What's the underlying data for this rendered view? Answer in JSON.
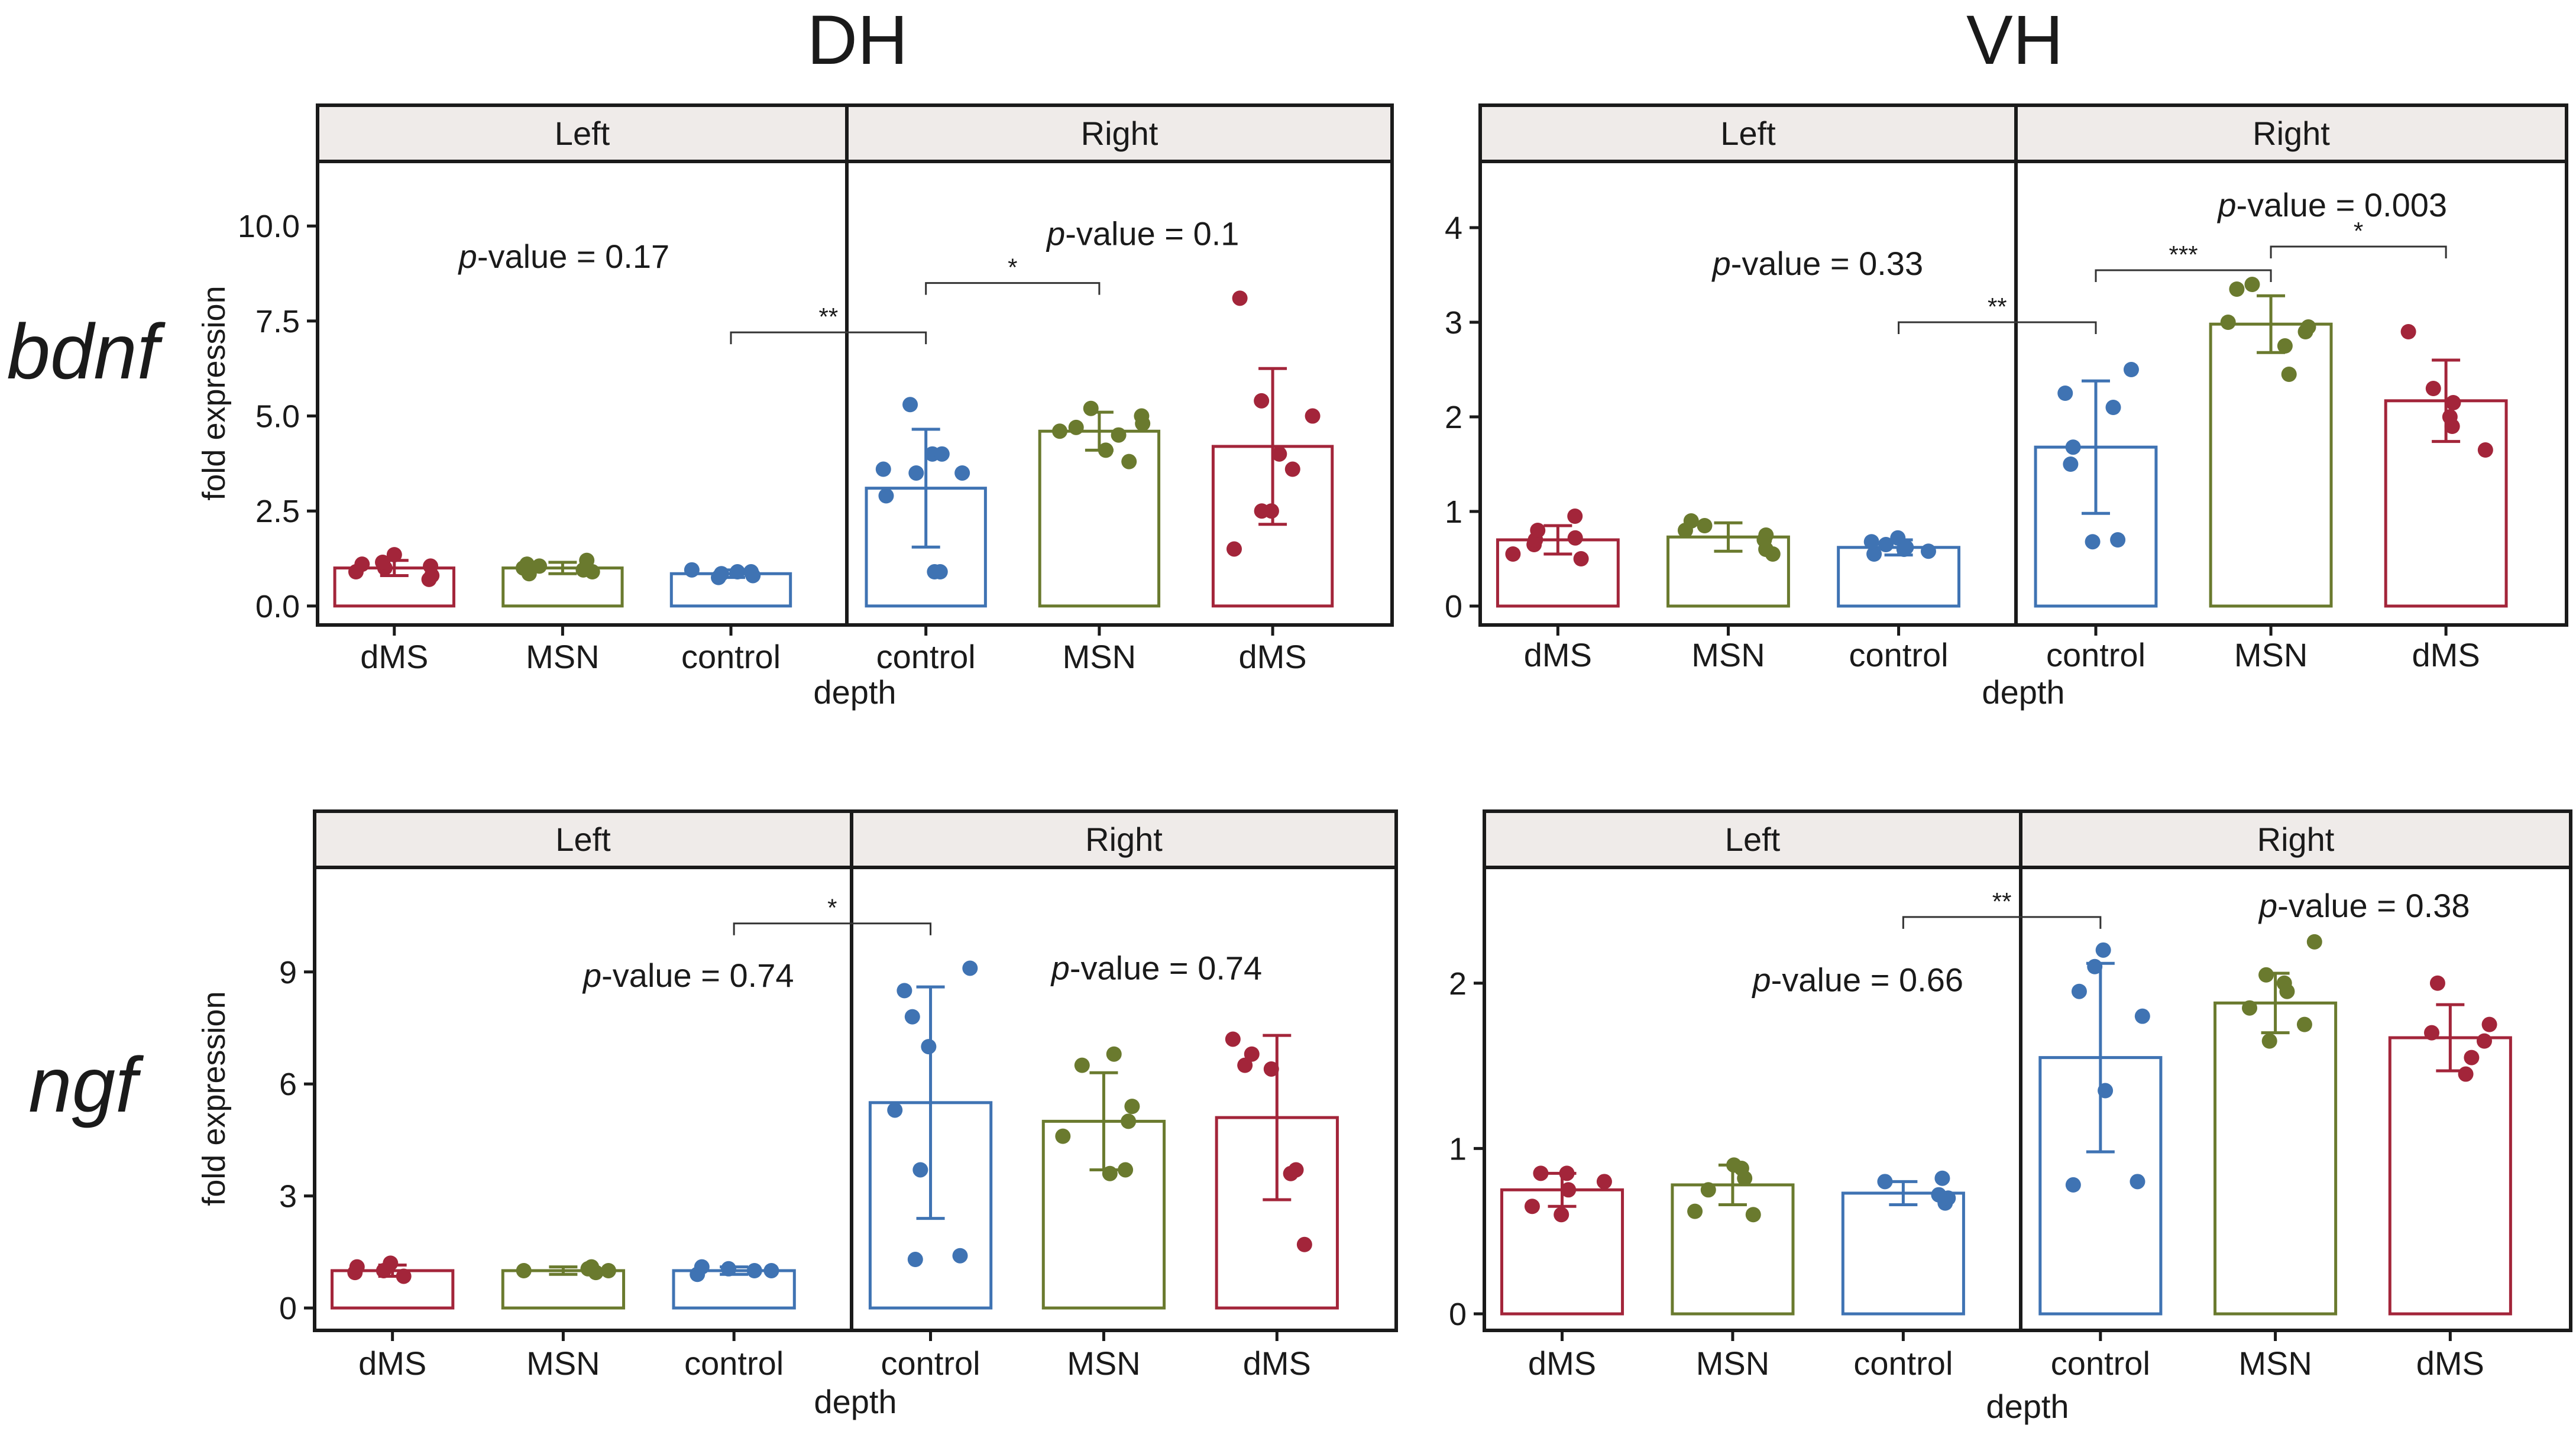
{
  "column_titles": [
    "DH",
    "VH"
  ],
  "row_labels": [
    "bdnf",
    "ngf"
  ],
  "colors": {
    "dMS": "#a3253a",
    "MSN": "#6a7a2e",
    "control": "#3f73b3",
    "strip_fill": "#efebe9",
    "frame": "#1a1a1a"
  },
  "chart_data": [
    {
      "id": "bdnf-DH",
      "type": "bar",
      "row": 0,
      "col": 0,
      "ylabel": "fold expression",
      "xlabel": "depth",
      "ylim": [
        -0.5,
        11.7
      ],
      "yticks": [
        0.0,
        2.5,
        5.0,
        7.5,
        10.0
      ],
      "ytick_labels": [
        "0.0",
        "2.5",
        "5.0",
        "7.5",
        "10.0"
      ],
      "facets": [
        "Left",
        "Right"
      ],
      "categories": [
        "dMS",
        "MSN",
        "control",
        "control",
        "MSN",
        "dMS"
      ],
      "bars": [
        {
          "facet": "Left",
          "group": "dMS",
          "mean": 1.0,
          "sd": 0.2,
          "points": [
            0.7,
            0.8,
            0.9,
            1.0,
            1.05,
            1.1,
            1.15,
            1.35
          ]
        },
        {
          "facet": "Left",
          "group": "MSN",
          "mean": 1.0,
          "sd": 0.15,
          "points": [
            0.85,
            0.9,
            0.95,
            1.0,
            1.05,
            1.1,
            1.2
          ]
        },
        {
          "facet": "Left",
          "group": "control",
          "mean": 0.85,
          "sd": 0.1,
          "points": [
            0.75,
            0.8,
            0.85,
            0.9,
            0.9,
            0.95
          ]
        },
        {
          "facet": "Right",
          "group": "control",
          "mean": 3.1,
          "sd": 1.55,
          "points": [
            0.9,
            0.9,
            2.9,
            3.5,
            3.5,
            3.6,
            4.0,
            4.0,
            5.3
          ]
        },
        {
          "facet": "Right",
          "group": "MSN",
          "mean": 4.6,
          "sd": 0.5,
          "points": [
            3.8,
            4.1,
            4.5,
            4.6,
            4.7,
            4.8,
            5.0,
            5.2
          ]
        },
        {
          "facet": "Right",
          "group": "dMS",
          "mean": 4.2,
          "sd": 2.05,
          "points": [
            1.5,
            2.5,
            2.5,
            3.6,
            4.0,
            5.0,
            5.4,
            8.1
          ]
        }
      ],
      "annotations": [
        {
          "text": "p-value = 0.17",
          "prefix": "p",
          "suffix": "-value = 0.17",
          "x": 0.8,
          "y": 8.9
        },
        {
          "text": "p-value = 0.1",
          "prefix": "p",
          "suffix": "-value = 0.1",
          "x": 4.1,
          "y": 9.5
        }
      ],
      "brackets": [
        {
          "from": 2,
          "to": 3,
          "y": 7.2,
          "label": "**"
        },
        {
          "from": 3,
          "to": 4,
          "y": 8.5,
          "label": "*"
        }
      ]
    },
    {
      "id": "bdnf-VH",
      "type": "bar",
      "row": 0,
      "col": 1,
      "ylabel": "",
      "xlabel": "depth",
      "ylim": [
        -0.2,
        4.7
      ],
      "yticks": [
        0,
        1,
        2,
        3,
        4
      ],
      "ytick_labels": [
        "0",
        "1",
        "2",
        "3",
        "4"
      ],
      "facets": [
        "Left",
        "Right"
      ],
      "categories": [
        "dMS",
        "MSN",
        "control",
        "control",
        "MSN",
        "dMS"
      ],
      "bars": [
        {
          "facet": "Left",
          "group": "dMS",
          "mean": 0.7,
          "sd": 0.15,
          "points": [
            0.5,
            0.55,
            0.65,
            0.7,
            0.72,
            0.8,
            0.95
          ]
        },
        {
          "facet": "Left",
          "group": "MSN",
          "mean": 0.73,
          "sd": 0.15,
          "points": [
            0.55,
            0.6,
            0.7,
            0.75,
            0.8,
            0.85,
            0.9
          ]
        },
        {
          "facet": "Left",
          "group": "control",
          "mean": 0.62,
          "sd": 0.08,
          "points": [
            0.55,
            0.58,
            0.6,
            0.62,
            0.65,
            0.68,
            0.72
          ]
        },
        {
          "facet": "Right",
          "group": "control",
          "mean": 1.68,
          "sd": 0.7,
          "points": [
            0.68,
            0.7,
            1.5,
            1.68,
            2.1,
            2.25,
            2.5
          ]
        },
        {
          "facet": "Right",
          "group": "MSN",
          "mean": 2.98,
          "sd": 0.3,
          "points": [
            2.45,
            2.75,
            2.9,
            2.95,
            3.0,
            3.35,
            3.4
          ]
        },
        {
          "facet": "Right",
          "group": "dMS",
          "mean": 2.17,
          "sd": 0.43,
          "points": [
            1.65,
            1.9,
            2.0,
            2.15,
            2.3,
            2.9
          ]
        }
      ],
      "annotations": [
        {
          "text": "p-value = 0.33",
          "prefix": "p",
          "suffix": "-value = 0.33",
          "x": 1.3,
          "y": 3.5
        },
        {
          "text": "p-value = 0.003",
          "prefix": "p",
          "suffix": "-value = 0.003",
          "x": 4.1,
          "y": 4.12
        }
      ],
      "brackets": [
        {
          "from": 2,
          "to": 3,
          "y": 3.0,
          "label": "**"
        },
        {
          "from": 3,
          "to": 4,
          "y": 3.55,
          "label": "***"
        },
        {
          "from": 4,
          "to": 5,
          "y": 3.8,
          "label": "*"
        }
      ]
    },
    {
      "id": "ngf-DH",
      "type": "bar",
      "row": 1,
      "col": 0,
      "ylabel": "fold expression",
      "xlabel": "depth",
      "ylim": [
        -0.6,
        11.8
      ],
      "yticks": [
        0,
        3,
        6,
        9
      ],
      "ytick_labels": [
        "0",
        "3",
        "6",
        "9"
      ],
      "facets": [
        "Left",
        "Right"
      ],
      "categories": [
        "dMS",
        "MSN",
        "control",
        "control",
        "MSN",
        "dMS"
      ],
      "bars": [
        {
          "facet": "Left",
          "group": "dMS",
          "mean": 1.0,
          "sd": 0.15,
          "points": [
            0.85,
            0.95,
            1.0,
            1.1,
            1.2
          ]
        },
        {
          "facet": "Left",
          "group": "MSN",
          "mean": 1.0,
          "sd": 0.1,
          "points": [
            0.95,
            1.0,
            1.0,
            1.05,
            1.1
          ]
        },
        {
          "facet": "Left",
          "group": "control",
          "mean": 1.0,
          "sd": 0.1,
          "points": [
            0.9,
            1.0,
            1.0,
            1.05,
            1.1
          ]
        },
        {
          "facet": "Right",
          "group": "control",
          "mean": 5.5,
          "sd": 3.1,
          "points": [
            1.3,
            1.4,
            3.7,
            5.3,
            7.0,
            7.8,
            8.5,
            9.1
          ]
        },
        {
          "facet": "Right",
          "group": "MSN",
          "mean": 5.0,
          "sd": 1.3,
          "points": [
            3.6,
            3.7,
            4.6,
            5.0,
            5.4,
            6.5,
            6.8
          ]
        },
        {
          "facet": "Right",
          "group": "dMS",
          "mean": 5.1,
          "sd": 2.2,
          "points": [
            1.7,
            3.6,
            3.7,
            6.4,
            6.5,
            6.8,
            7.2
          ]
        }
      ],
      "annotations": [
        {
          "text": "p-value = 0.74",
          "prefix": "p",
          "suffix": "-value = 0.74",
          "x": 1.5,
          "y": 8.6
        },
        {
          "text": "p-value = 0.74",
          "prefix": "p",
          "suffix": "-value = 0.74",
          "x": 4.1,
          "y": 8.8
        }
      ],
      "brackets": [
        {
          "from": 2,
          "to": 3,
          "y": 10.3,
          "label": "*"
        }
      ]
    },
    {
      "id": "ngf-VH",
      "type": "bar",
      "row": 1,
      "col": 1,
      "ylabel": "",
      "xlabel": "depth",
      "ylim": [
        -0.1,
        2.7
      ],
      "yticks": [
        0,
        1,
        2
      ],
      "ytick_labels": [
        "0",
        "1",
        "2"
      ],
      "facets": [
        "Left",
        "Right"
      ],
      "categories": [
        "dMS",
        "MSN",
        "control",
        "control",
        "MSN",
        "dMS"
      ],
      "bars": [
        {
          "facet": "Left",
          "group": "dMS",
          "mean": 0.75,
          "sd": 0.1,
          "points": [
            0.6,
            0.65,
            0.75,
            0.8,
            0.85,
            0.85
          ]
        },
        {
          "facet": "Left",
          "group": "MSN",
          "mean": 0.78,
          "sd": 0.12,
          "points": [
            0.6,
            0.62,
            0.75,
            0.82,
            0.88,
            0.9
          ]
        },
        {
          "facet": "Left",
          "group": "control",
          "mean": 0.73,
          "sd": 0.07,
          "points": [
            0.67,
            0.7,
            0.72,
            0.8,
            0.82
          ]
        },
        {
          "facet": "Right",
          "group": "control",
          "mean": 1.55,
          "sd": 0.57,
          "points": [
            0.78,
            0.8,
            1.35,
            1.8,
            1.95,
            2.1,
            2.2
          ]
        },
        {
          "facet": "Right",
          "group": "MSN",
          "mean": 1.88,
          "sd": 0.18,
          "points": [
            1.65,
            1.75,
            1.85,
            1.95,
            2.0,
            2.05,
            2.25
          ]
        },
        {
          "facet": "Right",
          "group": "dMS",
          "mean": 1.67,
          "sd": 0.2,
          "points": [
            1.45,
            1.55,
            1.65,
            1.7,
            1.75,
            2.0
          ]
        }
      ],
      "annotations": [
        {
          "text": "p-value = 0.66",
          "prefix": "p",
          "suffix": "-value = 0.66",
          "x": 1.5,
          "y": 1.95
        },
        {
          "text": "p-value = 0.38",
          "prefix": "p",
          "suffix": "-value = 0.38",
          "x": 4.3,
          "y": 2.4
        }
      ],
      "brackets": [
        {
          "from": 2,
          "to": 3,
          "y": 2.4,
          "label": "**"
        }
      ]
    }
  ]
}
